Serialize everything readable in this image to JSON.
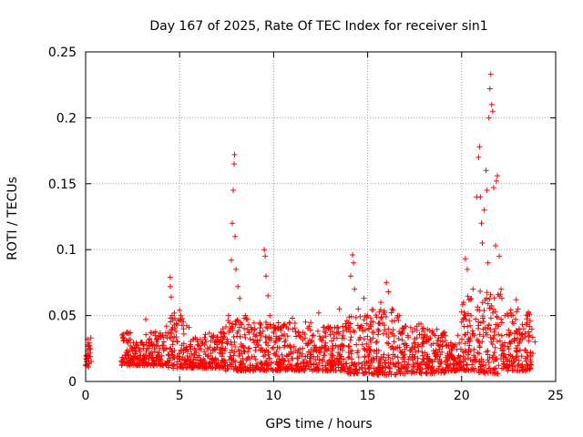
{
  "chart_data": {
    "type": "scatter",
    "title": "Day 167 of 2025, Rate Of TEC Index for receiver sin1",
    "xlabel": "GPS time / hours",
    "ylabel": "ROTI / TECUs",
    "xlim": [
      0,
      25
    ],
    "ylim": [
      0,
      0.25
    ],
    "x_ticks": [
      0,
      5,
      10,
      15,
      20,
      25
    ],
    "y_ticks": [
      0,
      0.05,
      0.1,
      0.15,
      0.2,
      0.25
    ],
    "x_tick_labels": [
      "0",
      "5",
      "10",
      "15",
      "20",
      "25"
    ],
    "y_tick_labels": [
      "0",
      "0.05",
      "0.1",
      "0.15",
      "0.2",
      "0.25"
    ],
    "grid": true,
    "marker": "+",
    "series_color": "#ff0000",
    "series": [
      {
        "name": "ROTI",
        "points": [
          [
            0.05,
            0.015
          ],
          [
            0.1,
            0.032
          ],
          [
            0.12,
            0.02
          ],
          [
            0.15,
            0.011
          ],
          [
            0.2,
            0.025
          ],
          [
            2.0,
            0.036
          ],
          [
            2.1,
            0.02
          ],
          [
            2.2,
            0.015
          ],
          [
            2.5,
            0.023
          ],
          [
            2.8,
            0.018
          ],
          [
            3.1,
            0.028
          ],
          [
            3.2,
            0.047
          ],
          [
            3.5,
            0.022
          ],
          [
            3.8,
            0.03
          ],
          [
            4.1,
            0.035
          ],
          [
            4.3,
            0.042
          ],
          [
            4.5,
            0.079
          ],
          [
            4.5,
            0.072
          ],
          [
            4.55,
            0.064
          ],
          [
            4.6,
            0.05
          ],
          [
            4.8,
            0.038
          ],
          [
            5.0,
            0.054
          ],
          [
            5.2,
            0.045
          ],
          [
            5.5,
            0.041
          ],
          [
            5.8,
            0.025
          ],
          [
            6.1,
            0.032
          ],
          [
            6.4,
            0.03
          ],
          [
            6.8,
            0.035
          ],
          [
            7.0,
            0.026
          ],
          [
            7.3,
            0.04
          ],
          [
            7.6,
            0.05
          ],
          [
            7.75,
            0.092
          ],
          [
            7.8,
            0.12
          ],
          [
            7.85,
            0.145
          ],
          [
            7.9,
            0.165
          ],
          [
            7.92,
            0.172
          ],
          [
            7.95,
            0.11
          ],
          [
            8.0,
            0.085
          ],
          [
            8.1,
            0.072
          ],
          [
            8.2,
            0.063
          ],
          [
            8.5,
            0.05
          ],
          [
            8.8,
            0.041
          ],
          [
            9.1,
            0.035
          ],
          [
            9.5,
            0.1
          ],
          [
            9.55,
            0.095
          ],
          [
            9.6,
            0.08
          ],
          [
            9.7,
            0.065
          ],
          [
            9.8,
            0.05
          ],
          [
            10.0,
            0.038
          ],
          [
            10.5,
            0.042
          ],
          [
            11.0,
            0.048
          ],
          [
            11.3,
            0.037
          ],
          [
            11.7,
            0.045
          ],
          [
            12.0,
            0.03
          ],
          [
            12.4,
            0.052
          ],
          [
            12.8,
            0.04
          ],
          [
            13.2,
            0.033
          ],
          [
            13.5,
            0.055
          ],
          [
            13.9,
            0.046
          ],
          [
            14.1,
            0.08
          ],
          [
            14.2,
            0.096
          ],
          [
            14.25,
            0.09
          ],
          [
            14.3,
            0.07
          ],
          [
            14.5,
            0.055
          ],
          [
            14.8,
            0.063
          ],
          [
            15.0,
            0.05
          ],
          [
            15.3,
            0.045
          ],
          [
            15.7,
            0.06
          ],
          [
            16.0,
            0.075
          ],
          [
            16.1,
            0.068
          ],
          [
            16.3,
            0.055
          ],
          [
            16.6,
            0.05
          ],
          [
            17.0,
            0.042
          ],
          [
            17.5,
            0.04
          ],
          [
            18.0,
            0.03
          ],
          [
            18.5,
            0.036
          ],
          [
            19.0,
            0.03
          ],
          [
            19.5,
            0.025
          ],
          [
            19.8,
            0.035
          ],
          [
            20.0,
            0.045
          ],
          [
            20.1,
            0.06
          ],
          [
            20.2,
            0.093
          ],
          [
            20.3,
            0.085
          ],
          [
            20.5,
            0.05
          ],
          [
            20.6,
            0.07
          ],
          [
            20.8,
            0.14
          ],
          [
            20.9,
            0.17
          ],
          [
            20.95,
            0.178
          ],
          [
            21.0,
            0.14
          ],
          [
            21.05,
            0.12
          ],
          [
            21.1,
            0.105
          ],
          [
            21.2,
            0.13
          ],
          [
            21.3,
            0.16
          ],
          [
            21.35,
            0.145
          ],
          [
            21.4,
            0.09
          ],
          [
            21.45,
            0.2
          ],
          [
            21.5,
            0.222
          ],
          [
            21.55,
            0.233
          ],
          [
            21.6,
            0.21
          ],
          [
            21.65,
            0.205
          ],
          [
            21.7,
            0.147
          ],
          [
            21.8,
            0.103
          ],
          [
            21.85,
            0.152
          ],
          [
            21.9,
            0.156
          ],
          [
            22.0,
            0.095
          ],
          [
            22.1,
            0.07
          ],
          [
            22.3,
            0.05
          ],
          [
            22.7,
            0.045
          ],
          [
            22.9,
            0.062
          ],
          [
            23.0,
            0.055
          ],
          [
            23.3,
            0.04
          ],
          [
            23.6,
            0.035
          ],
          [
            23.9,
            0.03
          ]
        ],
        "dense_band_segments": [
          [
            0.0,
            0.3,
            0.012,
            0.034
          ],
          [
            1.9,
            2.4,
            0.012,
            0.038
          ],
          [
            2.4,
            3.2,
            0.012,
            0.03
          ],
          [
            3.2,
            4.4,
            0.012,
            0.038
          ],
          [
            4.4,
            5.4,
            0.01,
            0.052
          ],
          [
            5.4,
            6.2,
            0.01,
            0.035
          ],
          [
            6.2,
            7.4,
            0.01,
            0.038
          ],
          [
            7.4,
            9.0,
            0.008,
            0.048
          ],
          [
            9.0,
            10.2,
            0.008,
            0.045
          ],
          [
            10.2,
            12.0,
            0.008,
            0.045
          ],
          [
            12.0,
            13.8,
            0.008,
            0.042
          ],
          [
            13.8,
            15.2,
            0.006,
            0.05
          ],
          [
            15.2,
            16.8,
            0.005,
            0.055
          ],
          [
            16.8,
            18.0,
            0.006,
            0.045
          ],
          [
            18.0,
            19.2,
            0.006,
            0.04
          ],
          [
            19.2,
            20.0,
            0.008,
            0.03
          ],
          [
            20.0,
            20.9,
            0.008,
            0.065
          ],
          [
            20.9,
            22.2,
            0.006,
            0.07
          ],
          [
            22.2,
            22.4,
            0.01,
            0.04
          ],
          [
            22.4,
            23.8,
            0.008,
            0.055
          ]
        ]
      }
    ]
  }
}
